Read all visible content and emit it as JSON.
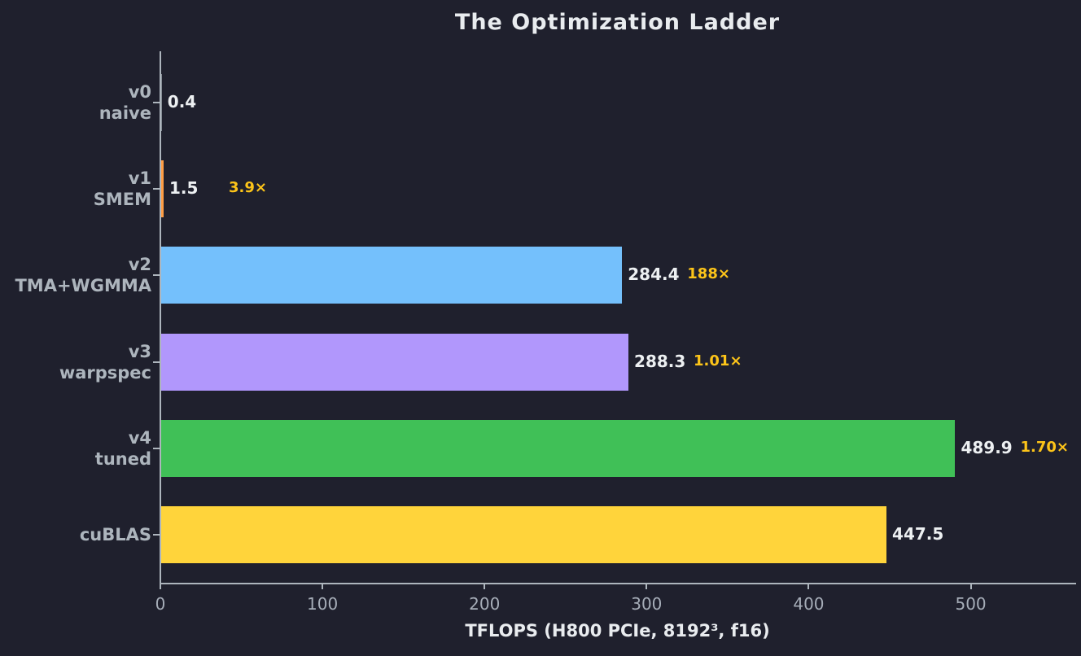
{
  "chart_data": {
    "type": "bar",
    "orientation": "horizontal",
    "title": "The Optimization Ladder",
    "xlabel": "TFLOPS (H800 PCIe, 8192³, f16)",
    "xlim": [
      0,
      564
    ],
    "xticks": [
      0,
      100,
      200,
      300,
      400,
      500
    ],
    "grid": false,
    "legend": "none",
    "background_color": "#1f202d",
    "axis_color": "#adb5bd",
    "title_color": "#e9ecef",
    "value_label_color": "#edf0f2",
    "multiplier_color": "#fcc419",
    "category_label_color": "#adb5bd",
    "bars": [
      {
        "label_lines": [
          "v0",
          "naive"
        ],
        "value": 0.4,
        "value_label": "0.4",
        "multiplier": "",
        "color": "#868e96"
      },
      {
        "label_lines": [
          "v1",
          "SMEM"
        ],
        "value": 1.5,
        "value_label": "1.5",
        "multiplier": "3.9×",
        "color": "#ff9e45"
      },
      {
        "label_lines": [
          "v2",
          "TMA+WGMMA"
        ],
        "value": 284.4,
        "value_label": "284.4",
        "multiplier": "188×",
        "color": "#74c0fc"
      },
      {
        "label_lines": [
          "v3",
          "warpspec"
        ],
        "value": 288.3,
        "value_label": "288.3",
        "multiplier": "1.01×",
        "color": "#b197fc"
      },
      {
        "label_lines": [
          "v4",
          "tuned"
        ],
        "value": 489.9,
        "value_label": "489.9",
        "multiplier": "1.70×",
        "color": "#40c057"
      },
      {
        "label_lines": [
          "cuBLAS"
        ],
        "value": 447.5,
        "value_label": "447.5",
        "multiplier": "",
        "color": "#ffd43b"
      }
    ]
  }
}
